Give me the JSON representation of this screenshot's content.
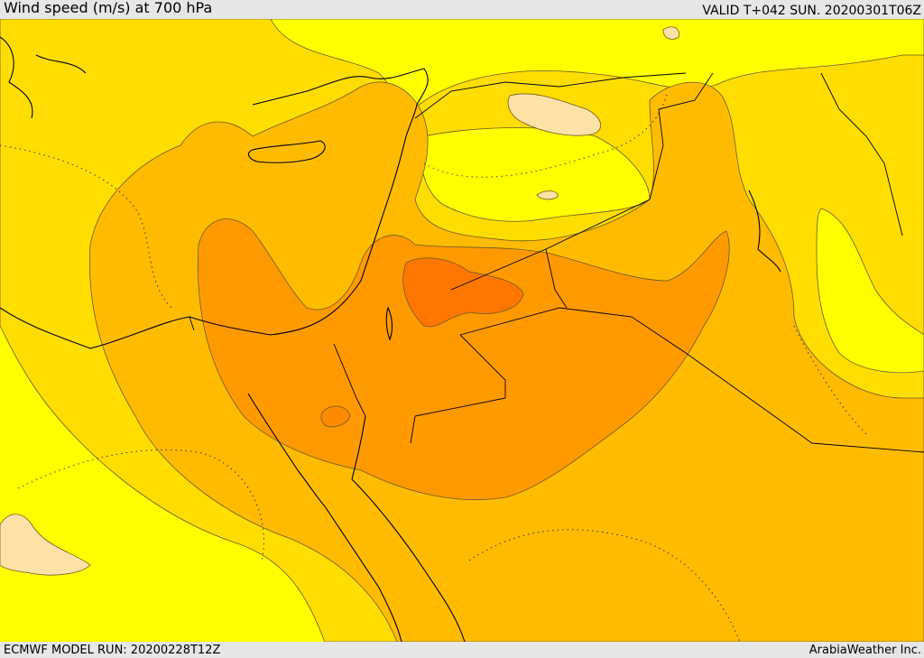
{
  "header": {
    "title": "Wind speed (m/s) at 700 hPa",
    "valid": "VALID T+042 SUN. 20200301T06Z"
  },
  "footer": {
    "model_run": "ECMWF MODEL RUN: 20200228T12Z",
    "credit": "ArabiaWeather Inc."
  },
  "colors": {
    "pale": "#fde2a8",
    "yellow": "#ffff00",
    "gold": "#ffdd00",
    "amber": "#ffbb00",
    "orange": "#ff9900",
    "deep_orange": "#ff7700",
    "coast": "#000000"
  }
}
